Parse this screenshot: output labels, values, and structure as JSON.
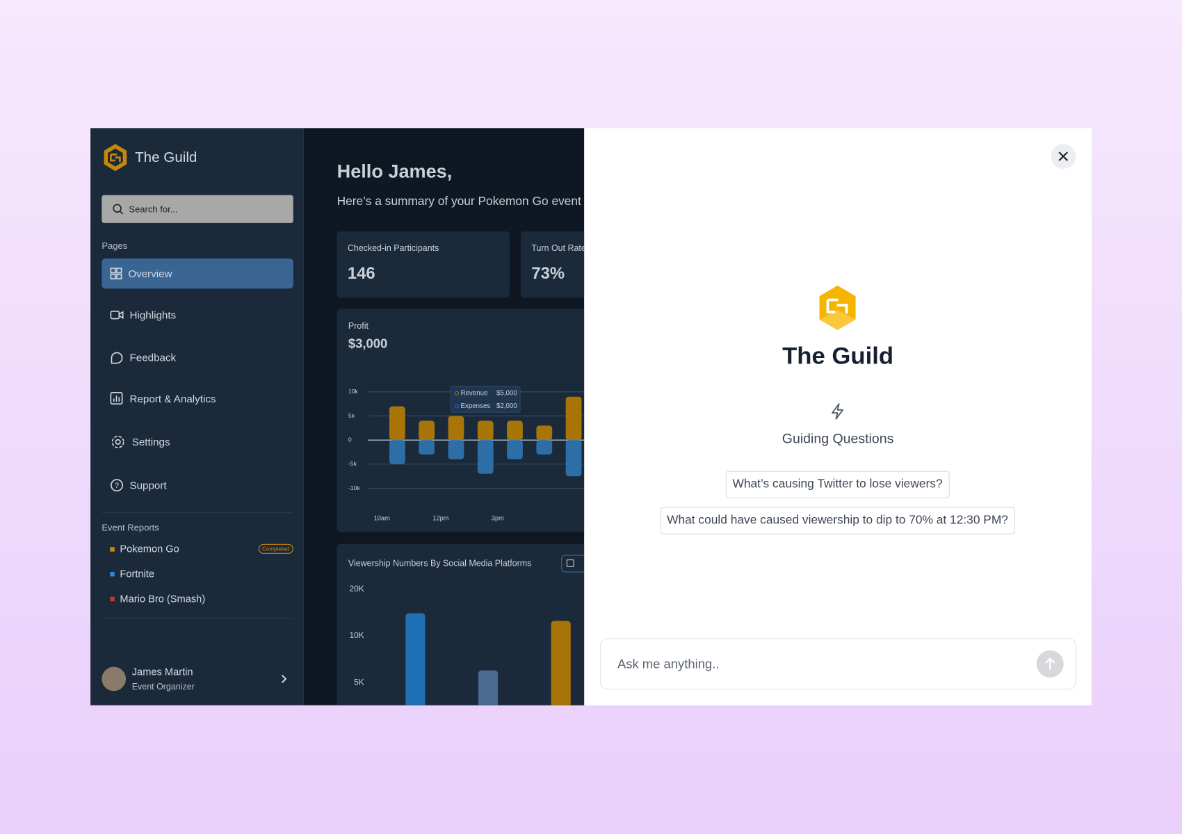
{
  "sidebar": {
    "brand": "The Guild",
    "search_placeholder": "Search for...",
    "pages_heading": "Pages",
    "pages": [
      "Overview",
      "Highlights",
      "Feedback",
      "Report & Analytics",
      "Settings",
      "Support"
    ],
    "event_reports_heading": "Event Reports",
    "event_reports": [
      {
        "name": "Pokemon Go",
        "color": "#c8870c",
        "badge": "Completed"
      },
      {
        "name": "Fortnite",
        "color": "#2f86d6"
      },
      {
        "name": "Mario Bro (Smash)",
        "color": "#c0392b"
      }
    ],
    "user": {
      "name": "James Martin",
      "role": "Event Organizer"
    }
  },
  "main": {
    "greeting": "Hello James,",
    "summary": "Here’s a summary of your Pokemon Go event",
    "stats": [
      {
        "label": "Checked-in Participants",
        "value": "146"
      },
      {
        "label": "Turn Out Rate",
        "value": "73%"
      }
    ]
  },
  "chart_data": [
    {
      "type": "bar",
      "title": "Profit",
      "subtitle": "$3,000",
      "categories": [
        "10am",
        null,
        "12pm",
        null,
        "3pm",
        null,
        null
      ],
      "series": [
        {
          "name": "Revenue",
          "color": "#a87508",
          "values": [
            7000,
            4000,
            5000,
            4000,
            4000,
            3000,
            9000
          ]
        },
        {
          "name": "Expenses",
          "color": "#2e6ea6",
          "values": [
            -5000,
            -3000,
            -4000,
            -7000,
            -4000,
            -3000,
            -7500
          ]
        }
      ],
      "tooltip_values": [
        "$5,000",
        "$2,000"
      ],
      "ylim": [
        -10000,
        10000
      ],
      "yticks": [
        {
          "value": 10000,
          "label": "10k"
        },
        {
          "value": 5000,
          "label": "5k"
        },
        0,
        {
          "value": -5000,
          "label": "-5k"
        },
        {
          "value": -10000,
          "label": "-10k"
        }
      ],
      "grid": true
    },
    {
      "type": "bar",
      "title": "Viewership Numbers By Social Media Platforms",
      "log_scale": true,
      "series": [
        {
          "values": [
            14000,
            6000,
            12500
          ]
        }
      ],
      "colors": [
        "#1f6fb5",
        "#4b6a8f",
        "#a87508"
      ],
      "ylim": [
        2500,
        20000
      ],
      "yticks": [
        {
          "value": 20000,
          "label": "20K"
        },
        {
          "value": 10000,
          "label": "10K"
        },
        {
          "value": 5000,
          "label": "5K"
        }
      ]
    }
  ],
  "assistant": {
    "brand": "The Guild",
    "section": "Guiding Questions",
    "questions": [
      "What’s causing Twitter to lose viewers?",
      "What could have caused viewership to dip to 70% at 12:30 PM?"
    ],
    "input_placeholder": "Ask me anything.."
  }
}
